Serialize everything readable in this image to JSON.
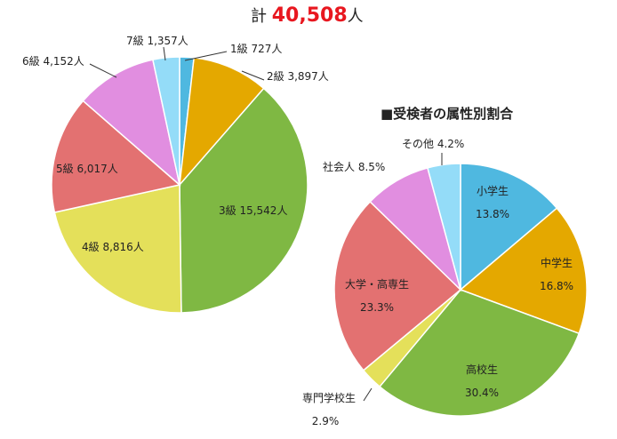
{
  "header": {
    "total_prefix": "計",
    "total_value": "40,508",
    "total_suffix": "人"
  },
  "chart_data": [
    {
      "type": "pie",
      "title": "",
      "slices": [
        {
          "label": "1級",
          "value": 727,
          "value_text": "727人",
          "color": "#4fb8e0"
        },
        {
          "label": "2級",
          "value": 3897,
          "value_text": "3,897人",
          "color": "#e4a800"
        },
        {
          "label": "3級",
          "value": 15542,
          "value_text": "15,542人",
          "color": "#7fb843"
        },
        {
          "label": "4級",
          "value": 8816,
          "value_text": "8,816人",
          "color": "#e4e05a"
        },
        {
          "label": "5級",
          "value": 6017,
          "value_text": "6,017人",
          "color": "#e37171"
        },
        {
          "label": "6級",
          "value": 4152,
          "value_text": "4,152人",
          "color": "#e18ee0"
        },
        {
          "label": "7級",
          "value": 1357,
          "value_text": "1,357人",
          "color": "#94dcf8"
        }
      ]
    },
    {
      "type": "pie",
      "title": "■受検者の属性別割合",
      "slices": [
        {
          "label": "小学生",
          "value": 13.8,
          "value_text": "13.8%",
          "color": "#4fb8e0"
        },
        {
          "label": "中学生",
          "value": 16.8,
          "value_text": "16.8%",
          "color": "#e4a800"
        },
        {
          "label": "高校生",
          "value": 30.4,
          "value_text": "30.4%",
          "color": "#7fb843"
        },
        {
          "label": "専門学校生",
          "value": 2.9,
          "value_text": "2.9%",
          "color": "#e4e05a"
        },
        {
          "label": "大学・高専生",
          "value": 23.3,
          "value_text": "23.3%",
          "color": "#e37171"
        },
        {
          "label": "社会人",
          "value": 8.5,
          "value_text": "8.5%",
          "color": "#e18ee0"
        },
        {
          "label": "その他",
          "value": 4.2,
          "value_text": "4.2%",
          "color": "#94dcf8"
        }
      ]
    }
  ]
}
